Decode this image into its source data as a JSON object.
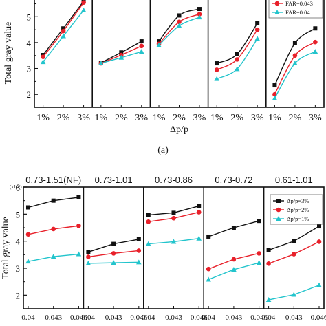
{
  "chart_data": [
    {
      "id": "top",
      "type": "line",
      "ylabel": "Total gray value",
      "xlabel": "Δp/p",
      "caption": "(a)",
      "x_ticks": [
        "1%",
        "2%",
        "3%"
      ],
      "ylim": [
        1.5,
        5.7
      ],
      "y_ticks": [
        "2",
        "3",
        "4",
        "5"
      ],
      "legend": {
        "placement": "top-right",
        "entries": [
          {
            "label": "FAR=0.043",
            "color": "#e8202a",
            "marker": "circle"
          },
          {
            "label": "FAR=0.04",
            "color": "#22c4cc",
            "marker": "triangle"
          }
        ]
      },
      "panels": [
        {
          "series": [
            {
              "color": "#111111",
              "marker": "square",
              "values": [
                3.52,
                4.55,
                5.6
              ]
            },
            {
              "color": "#e8202a",
              "marker": "circle",
              "values": [
                3.45,
                4.45,
                5.55
              ]
            },
            {
              "color": "#22c4cc",
              "marker": "triangle",
              "values": [
                3.25,
                4.25,
                5.25
              ]
            }
          ]
        },
        {
          "series": [
            {
              "color": "#111111",
              "marker": "square",
              "values": [
                3.22,
                3.62,
                4.05
              ]
            },
            {
              "color": "#e8202a",
              "marker": "circle",
              "values": [
                3.2,
                3.52,
                3.87
              ]
            },
            {
              "color": "#22c4cc",
              "marker": "triangle",
              "values": [
                3.2,
                3.42,
                3.65
              ]
            }
          ]
        },
        {
          "series": [
            {
              "color": "#111111",
              "marker": "square",
              "values": [
                4.05,
                5.05,
                5.3
              ]
            },
            {
              "color": "#e8202a",
              "marker": "circle",
              "values": [
                3.95,
                4.8,
                5.1
              ]
            },
            {
              "color": "#22c4cc",
              "marker": "triangle",
              "values": [
                3.9,
                4.65,
                4.98
              ]
            }
          ]
        },
        {
          "series": [
            {
              "color": "#111111",
              "marker": "square",
              "values": [
                3.2,
                3.55,
                4.75
              ]
            },
            {
              "color": "#e8202a",
              "marker": "circle",
              "values": [
                2.95,
                3.35,
                4.5
              ]
            },
            {
              "color": "#22c4cc",
              "marker": "triangle",
              "values": [
                2.6,
                2.98,
                4.15
              ]
            }
          ]
        },
        {
          "series": [
            {
              "color": "#111111",
              "marker": "square",
              "values": [
                2.35,
                3.98,
                4.55
              ]
            },
            {
              "color": "#e8202a",
              "marker": "circle",
              "values": [
                2.0,
                3.5,
                4.02
              ]
            },
            {
              "color": "#22c4cc",
              "marker": "triangle",
              "values": [
                1.85,
                3.2,
                3.65
              ]
            }
          ]
        }
      ]
    },
    {
      "id": "bottom",
      "type": "line",
      "ylabel": "Total gray value",
      "y_multiplier": "(x10⁵)",
      "x_ticks": [
        "0.04",
        "0.043",
        "0.046"
      ],
      "ylim": [
        1.5,
        6.0
      ],
      "y_ticks": [
        "2",
        "3",
        "4",
        "5",
        "6"
      ],
      "legend": {
        "placement": "top-right",
        "entries": [
          {
            "label": "Δp/p=3%",
            "color": "#111111",
            "marker": "square"
          },
          {
            "label": "Δp/p=2%",
            "color": "#e8202a",
            "marker": "circle"
          },
          {
            "label": "Δp/p=1%",
            "color": "#22c4cc",
            "marker": "triangle"
          }
        ]
      },
      "panels": [
        {
          "title": "0.73-1.51(NF)",
          "series": [
            {
              "color": "#111111",
              "marker": "square",
              "values": [
                5.25,
                5.5,
                5.62
              ]
            },
            {
              "color": "#e8202a",
              "marker": "circle",
              "values": [
                4.25,
                4.45,
                4.57
              ]
            },
            {
              "color": "#22c4cc",
              "marker": "triangle",
              "values": [
                3.25,
                3.43,
                3.52
              ]
            }
          ]
        },
        {
          "title": "0.73-1.01",
          "series": [
            {
              "color": "#111111",
              "marker": "square",
              "values": [
                3.6,
                3.9,
                4.07
              ]
            },
            {
              "color": "#e8202a",
              "marker": "circle",
              "values": [
                3.42,
                3.55,
                3.65
              ]
            },
            {
              "color": "#22c4cc",
              "marker": "triangle",
              "values": [
                3.18,
                3.2,
                3.22
              ]
            }
          ]
        },
        {
          "title": "0.73-0.86",
          "series": [
            {
              "color": "#111111",
              "marker": "square",
              "values": [
                4.97,
                5.05,
                5.3
              ]
            },
            {
              "color": "#e8202a",
              "marker": "circle",
              "values": [
                4.72,
                4.85,
                5.07
              ]
            },
            {
              "color": "#22c4cc",
              "marker": "triangle",
              "values": [
                3.9,
                3.98,
                4.1
              ]
            }
          ]
        },
        {
          "title": "0.73-0.72",
          "series": [
            {
              "color": "#111111",
              "marker": "square",
              "values": [
                4.17,
                4.5,
                4.75
              ]
            },
            {
              "color": "#e8202a",
              "marker": "circle",
              "values": [
                2.97,
                3.33,
                3.55
              ]
            },
            {
              "color": "#22c4cc",
              "marker": "triangle",
              "values": [
                2.58,
                2.95,
                3.2
              ]
            }
          ]
        },
        {
          "title": "0.61-1.01",
          "series": [
            {
              "color": "#111111",
              "marker": "square",
              "values": [
                3.67,
                4.0,
                4.55
              ]
            },
            {
              "color": "#e8202a",
              "marker": "circle",
              "values": [
                3.17,
                3.52,
                3.98
              ]
            },
            {
              "color": "#22c4cc",
              "marker": "triangle",
              "values": [
                1.83,
                2.02,
                2.37
              ]
            }
          ]
        }
      ]
    }
  ]
}
